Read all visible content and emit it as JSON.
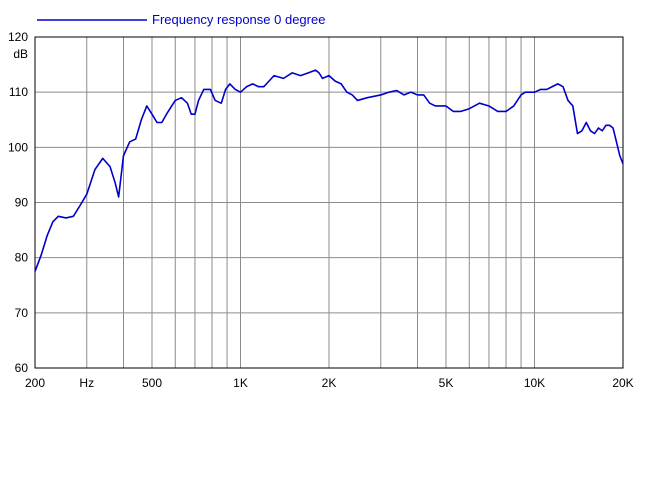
{
  "chart_data": {
    "type": "line",
    "xscale": "log",
    "xlim": [
      200,
      20000
    ],
    "ylim": [
      60,
      120
    ],
    "grid": true,
    "ylabel": "dB",
    "xlabel": "Hz",
    "legend_placement": "top-left",
    "x_ticks": [
      {
        "value": 200,
        "label": "200"
      },
      {
        "value": 300,
        "label": "Hz"
      },
      {
        "value": 500,
        "label": "500"
      },
      {
        "value": 1000,
        "label": "1K"
      },
      {
        "value": 2000,
        "label": "2K"
      },
      {
        "value": 5000,
        "label": "5K"
      },
      {
        "value": 10000,
        "label": "10K"
      },
      {
        "value": 20000,
        "label": "20K"
      }
    ],
    "x_gridlines": [
      300,
      400,
      500,
      600,
      700,
      800,
      900,
      1000,
      2000,
      3000,
      4000,
      5000,
      6000,
      7000,
      8000,
      9000,
      10000
    ],
    "y_ticks": [
      {
        "value": 60,
        "label": "60"
      },
      {
        "value": 70,
        "label": "70"
      },
      {
        "value": 80,
        "label": "80"
      },
      {
        "value": 90,
        "label": "90"
      },
      {
        "value": 100,
        "label": "100"
      },
      {
        "value": 110,
        "label": "110"
      },
      {
        "value": 120,
        "label": "120"
      }
    ],
    "series": [
      {
        "name": "Frequency response 0 degree",
        "color": "#0000cc",
        "x": [
          200,
          210,
          220,
          230,
          240,
          255,
          270,
          285,
          300,
          320,
          340,
          360,
          375,
          385,
          400,
          420,
          440,
          460,
          480,
          500,
          520,
          540,
          560,
          600,
          630,
          660,
          680,
          700,
          720,
          750,
          790,
          820,
          860,
          890,
          920,
          960,
          1000,
          1050,
          1100,
          1150,
          1200,
          1250,
          1300,
          1400,
          1500,
          1600,
          1700,
          1800,
          1850,
          1900,
          2000,
          2100,
          2200,
          2300,
          2400,
          2500,
          2700,
          3000,
          3200,
          3400,
          3600,
          3800,
          4000,
          4200,
          4400,
          4600,
          4800,
          5000,
          5300,
          5600,
          6000,
          6500,
          7000,
          7500,
          8000,
          8500,
          9000,
          9300,
          9700,
          10000,
          10500,
          11000,
          11500,
          12000,
          12500,
          13000,
          13500,
          14000,
          14500,
          15000,
          15500,
          16000,
          16500,
          17000,
          17500,
          18000,
          18500,
          19000,
          19500,
          20000
        ],
        "y": [
          77.5,
          80.5,
          84.0,
          86.5,
          87.5,
          87.2,
          87.5,
          89.5,
          91.5,
          96.0,
          98.0,
          96.5,
          93.5,
          91.0,
          98.5,
          101.0,
          101.5,
          105.0,
          107.5,
          106.0,
          104.5,
          104.5,
          106.0,
          108.5,
          109.0,
          108.0,
          106.0,
          106.0,
          108.5,
          110.5,
          110.5,
          108.5,
          108.0,
          110.5,
          111.5,
          110.5,
          110.0,
          111.0,
          111.5,
          111.0,
          111.0,
          112.0,
          113.0,
          112.5,
          113.5,
          113.0,
          113.5,
          114.0,
          113.5,
          112.5,
          113.0,
          112.0,
          111.5,
          110.0,
          109.5,
          108.5,
          109.0,
          109.5,
          110.0,
          110.3,
          109.5,
          110.0,
          109.5,
          109.5,
          108.0,
          107.5,
          107.5,
          107.5,
          106.5,
          106.5,
          107.0,
          108.0,
          107.5,
          106.5,
          106.5,
          107.5,
          109.5,
          110.0,
          110.0,
          110.0,
          110.5,
          110.5,
          111.0,
          111.5,
          111.0,
          108.5,
          107.5,
          102.5,
          103.0,
          104.5,
          103.0,
          102.5,
          103.5,
          103.0,
          104.0,
          104.0,
          103.5,
          101.0,
          98.5,
          97.0
        ]
      }
    ]
  }
}
